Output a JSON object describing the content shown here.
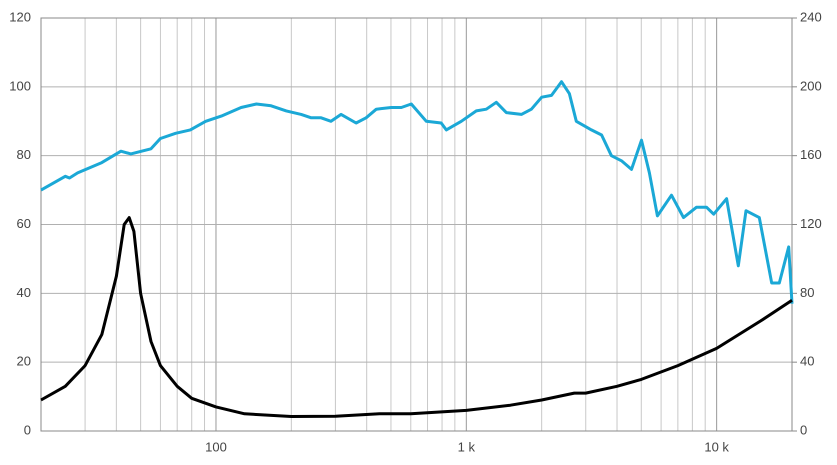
{
  "chart_data": {
    "type": "line",
    "x_scale": "log",
    "xlim": [
      20,
      20000
    ],
    "xticks": [
      {
        "value": 100,
        "label": "100"
      },
      {
        "value": 1000,
        "label": "1 k"
      },
      {
        "value": 10000,
        "label": "10 k"
      }
    ],
    "xminor": [
      30,
      40,
      50,
      60,
      70,
      80,
      90,
      200,
      300,
      400,
      500,
      600,
      700,
      800,
      900,
      2000,
      3000,
      4000,
      5000,
      6000,
      7000,
      8000,
      9000
    ],
    "ylim": [
      0,
      120
    ],
    "yticks": [
      0,
      20,
      40,
      60,
      80,
      100,
      120
    ],
    "y2lim": [
      0,
      240
    ],
    "y2ticks": [
      0,
      40,
      80,
      120,
      160,
      200,
      240
    ],
    "grid": true,
    "series": [
      {
        "color": "#1ba8d6",
        "x": [
          20,
          25,
          26,
          28,
          35,
          41.7,
          45.7,
          55,
          60,
          69,
          79,
          91,
          105,
          126,
          145,
          166,
          191,
          219,
          240,
          263,
          288,
          316,
          363,
          398,
          437,
          501,
          550,
          603,
          692,
          794,
          832,
          955,
          1096,
          1202,
          1318,
          1445,
          1660,
          1820,
          2000,
          2190,
          2400,
          2580,
          2750,
          3160,
          3470,
          3800,
          4170,
          4570,
          5010,
          5390,
          5800,
          6600,
          7370,
          8300,
          9120,
          9730,
          10960,
          12200,
          13100,
          14800,
          16600,
          17800,
          19400,
          20000
        ],
        "values": [
          70,
          74,
          73.5,
          75,
          78,
          81.3,
          80.5,
          82,
          85,
          86.5,
          87.5,
          90,
          91.5,
          94,
          95,
          94.5,
          93,
          92,
          91,
          91,
          90,
          92,
          89.5,
          91,
          93.5,
          94,
          94,
          95,
          90,
          89.5,
          87.5,
          90,
          93,
          93.5,
          95.5,
          92.5,
          92,
          93.5,
          97,
          97.5,
          101.5,
          98,
          90,
          87.5,
          86,
          80,
          78.5,
          76,
          84.5,
          75,
          62.5,
          68.5,
          62,
          65,
          65,
          63,
          67.5,
          48,
          64,
          62,
          43,
          43,
          53.5,
          37
        ]
      },
      {
        "color": "#000000",
        "axis": "y2",
        "x": [
          20,
          25,
          30,
          35,
          40,
          43,
          45,
          47,
          50,
          55,
          60,
          70,
          80,
          100,
          130,
          200,
          300,
          450,
          600,
          1000,
          1500,
          2000,
          2500,
          2700,
          3000,
          4000,
          5000,
          7000,
          10000,
          15000,
          20000
        ],
        "values": [
          18,
          26,
          38,
          56,
          90,
          120,
          124,
          116,
          80,
          52,
          38,
          26,
          19,
          14,
          10,
          8.4,
          8.6,
          10,
          10,
          12,
          15,
          18,
          21,
          22,
          22,
          26,
          30,
          38,
          48,
          64,
          76
        ]
      }
    ]
  }
}
